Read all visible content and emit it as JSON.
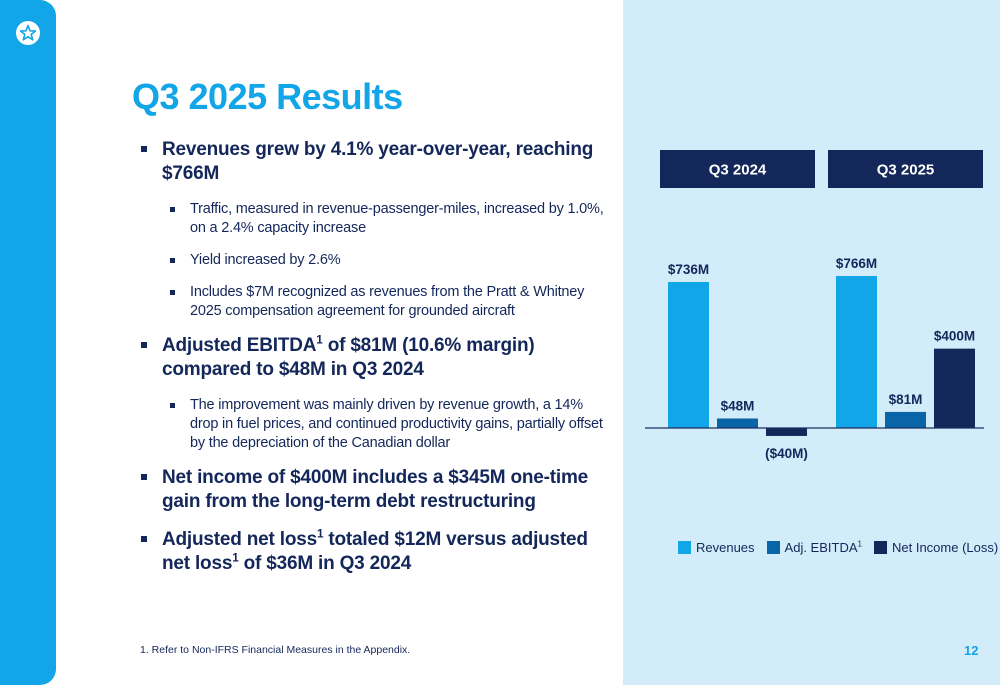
{
  "title": "Q3 2025 Results",
  "bullets": [
    {
      "text": "Revenues grew by 4.1% year-over-year, reaching $766M",
      "sub": [
        "Traffic, measured in revenue-passenger-miles, increased by 1.0%, on a 2.4% capacity increase",
        "Yield increased by 2.6%",
        "Includes $7M recognized as revenues from the Pratt & Whitney 2025 compensation agreement for grounded aircraft"
      ]
    },
    {
      "text_before": "Adjusted EBITDA",
      "sup": "1",
      "text_after": " of $81M (10.6% margin) compared to $48M in Q3 2024",
      "sub": [
        "The improvement was mainly driven by revenue growth, a 14% drop in fuel prices, and continued productivity gains, partially offset by the depreciation of the Canadian dollar"
      ]
    },
    {
      "text": "Net income of $400M includes a $345M one-time gain from the long-term debt restructuring"
    },
    {
      "parts": [
        "Adjusted net loss",
        "1",
        " totaled $12M versus adjusted net loss",
        "1",
        " of $36M in Q3 2024"
      ]
    }
  ],
  "footnote": "1.    Refer to Non-IFRS Financial Measures in the Appendix.",
  "page_number": "12",
  "chart_data": {
    "type": "bar",
    "categories": [
      "Q3 2024",
      "Q3 2025"
    ],
    "series": [
      {
        "name": "Revenues",
        "color": "#12a5e8",
        "values": [
          736,
          766
        ],
        "labels": [
          "$736M",
          "$766M"
        ]
      },
      {
        "name": "Adj. EBITDA",
        "name_sup": "1",
        "color": "#0a64a8",
        "values": [
          48,
          81
        ],
        "labels": [
          "$48M",
          "$81M"
        ]
      },
      {
        "name": "Net Income (Loss)",
        "color": "#14275a",
        "values": [
          -40,
          400
        ],
        "labels": [
          "($40M)",
          "$400M"
        ]
      }
    ],
    "legend": "bottom"
  },
  "colors": {
    "accent": "#12a5e8",
    "navy": "#14275a",
    "panel": "#d3ecfa"
  },
  "icons": {
    "logo": "star-icon"
  }
}
